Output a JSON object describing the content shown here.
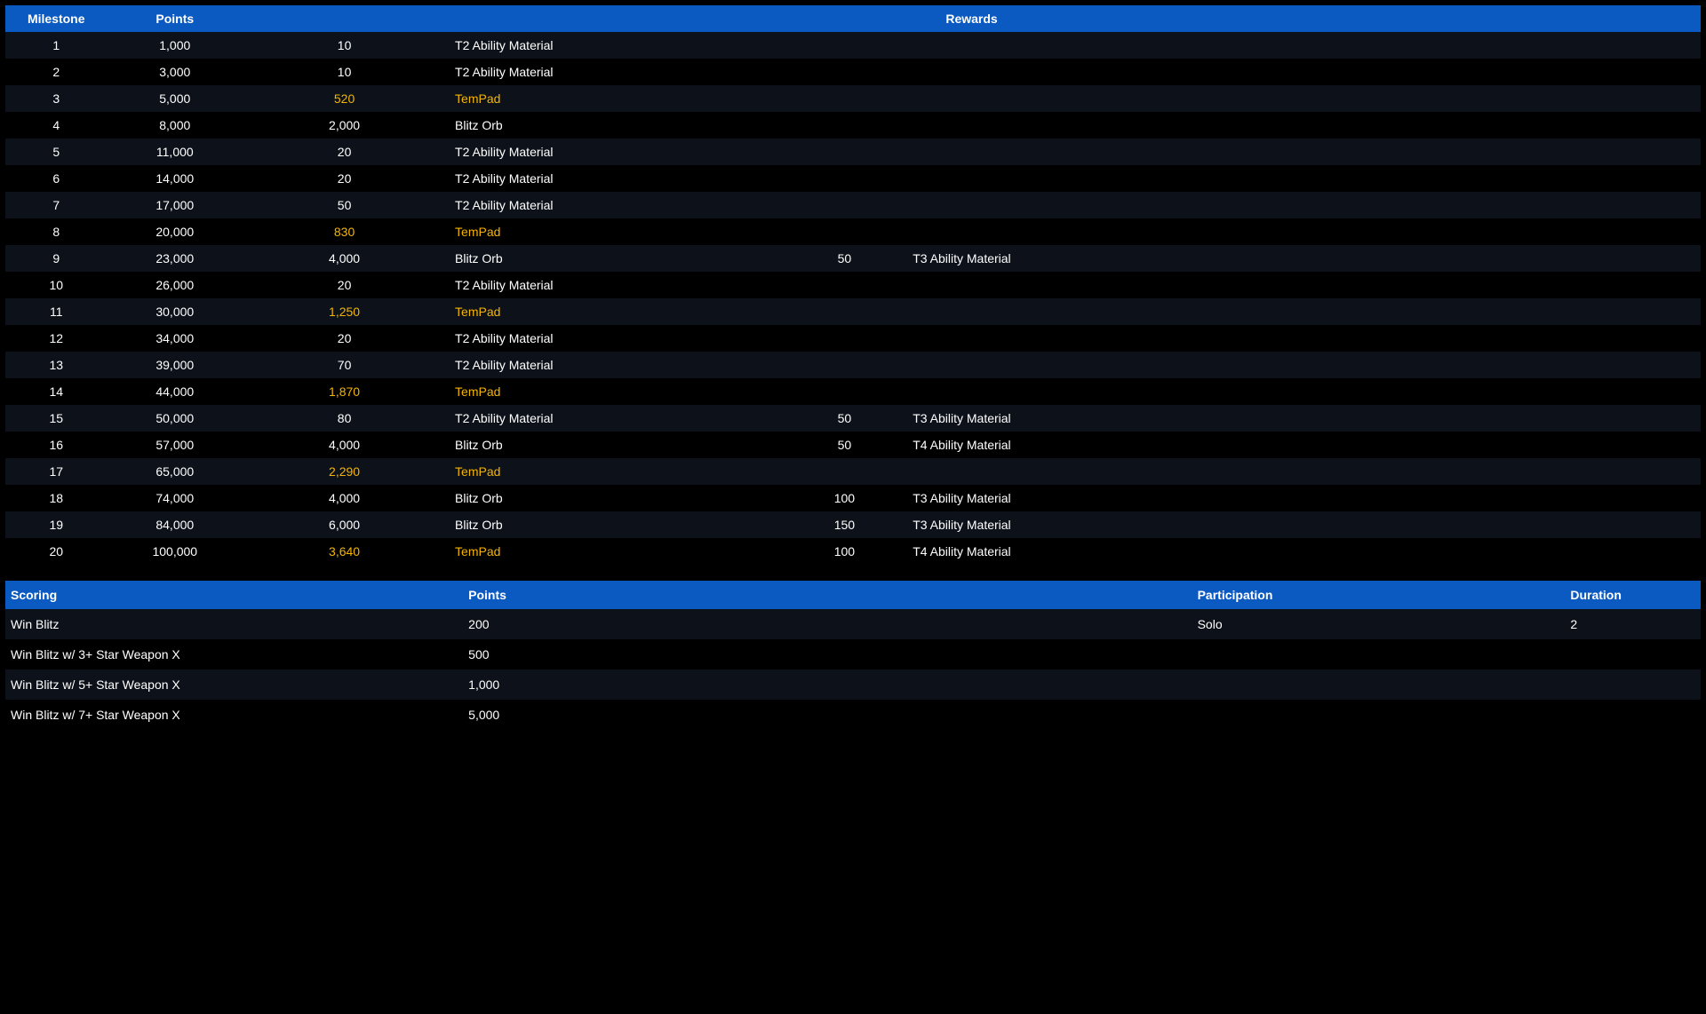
{
  "milestones_table": {
    "headers": {
      "milestone": "Milestone",
      "points": "Points",
      "rewards": "Rewards"
    },
    "highlight_color": "#f5b400",
    "header_bg": "#0a5ac2",
    "row_bg_odd": "#0d121a",
    "row_bg_even": "#000000",
    "rows": [
      {
        "milestone": "1",
        "points": "1,000",
        "reward1_qty": "10",
        "reward1_item": "T2 Ability Material",
        "reward2_qty": "",
        "reward2_item": "",
        "highlight": false
      },
      {
        "milestone": "2",
        "points": "3,000",
        "reward1_qty": "10",
        "reward1_item": "T2 Ability Material",
        "reward2_qty": "",
        "reward2_item": "",
        "highlight": false
      },
      {
        "milestone": "3",
        "points": "5,000",
        "reward1_qty": "520",
        "reward1_item": "TemPad",
        "reward2_qty": "",
        "reward2_item": "",
        "highlight": true
      },
      {
        "milestone": "4",
        "points": "8,000",
        "reward1_qty": "2,000",
        "reward1_item": "Blitz Orb",
        "reward2_qty": "",
        "reward2_item": "",
        "highlight": false
      },
      {
        "milestone": "5",
        "points": "11,000",
        "reward1_qty": "20",
        "reward1_item": "T2 Ability Material",
        "reward2_qty": "",
        "reward2_item": "",
        "highlight": false
      },
      {
        "milestone": "6",
        "points": "14,000",
        "reward1_qty": "20",
        "reward1_item": "T2 Ability Material",
        "reward2_qty": "",
        "reward2_item": "",
        "highlight": false
      },
      {
        "milestone": "7",
        "points": "17,000",
        "reward1_qty": "50",
        "reward1_item": "T2 Ability Material",
        "reward2_qty": "",
        "reward2_item": "",
        "highlight": false
      },
      {
        "milestone": "8",
        "points": "20,000",
        "reward1_qty": "830",
        "reward1_item": "TemPad",
        "reward2_qty": "",
        "reward2_item": "",
        "highlight": true
      },
      {
        "milestone": "9",
        "points": "23,000",
        "reward1_qty": "4,000",
        "reward1_item": "Blitz Orb",
        "reward2_qty": "50",
        "reward2_item": "T3 Ability Material",
        "highlight": false
      },
      {
        "milestone": "10",
        "points": "26,000",
        "reward1_qty": "20",
        "reward1_item": "T2 Ability Material",
        "reward2_qty": "",
        "reward2_item": "",
        "highlight": false
      },
      {
        "milestone": "11",
        "points": "30,000",
        "reward1_qty": "1,250",
        "reward1_item": "TemPad",
        "reward2_qty": "",
        "reward2_item": "",
        "highlight": true
      },
      {
        "milestone": "12",
        "points": "34,000",
        "reward1_qty": "20",
        "reward1_item": "T2 Ability Material",
        "reward2_qty": "",
        "reward2_item": "",
        "highlight": false
      },
      {
        "milestone": "13",
        "points": "39,000",
        "reward1_qty": "70",
        "reward1_item": "T2 Ability Material",
        "reward2_qty": "",
        "reward2_item": "",
        "highlight": false
      },
      {
        "milestone": "14",
        "points": "44,000",
        "reward1_qty": "1,870",
        "reward1_item": "TemPad",
        "reward2_qty": "",
        "reward2_item": "",
        "highlight": true
      },
      {
        "milestone": "15",
        "points": "50,000",
        "reward1_qty": "80",
        "reward1_item": "T2 Ability Material",
        "reward2_qty": "50",
        "reward2_item": "T3 Ability Material",
        "highlight": false
      },
      {
        "milestone": "16",
        "points": "57,000",
        "reward1_qty": "4,000",
        "reward1_item": "Blitz Orb",
        "reward2_qty": "50",
        "reward2_item": "T4 Ability Material",
        "highlight": false
      },
      {
        "milestone": "17",
        "points": "65,000",
        "reward1_qty": "2,290",
        "reward1_item": "TemPad",
        "reward2_qty": "",
        "reward2_item": "",
        "highlight": true
      },
      {
        "milestone": "18",
        "points": "74,000",
        "reward1_qty": "4,000",
        "reward1_item": "Blitz Orb",
        "reward2_qty": "100",
        "reward2_item": "T3 Ability Material",
        "highlight": false
      },
      {
        "milestone": "19",
        "points": "84,000",
        "reward1_qty": "6,000",
        "reward1_item": "Blitz Orb",
        "reward2_qty": "150",
        "reward2_item": "T3 Ability Material",
        "highlight": false
      },
      {
        "milestone": "20",
        "points": "100,000",
        "reward1_qty": "3,640",
        "reward1_item": "TemPad",
        "reward2_qty": "100",
        "reward2_item": "T4 Ability Material",
        "highlight": true
      }
    ]
  },
  "scoring_table": {
    "headers": {
      "scoring": "Scoring",
      "points": "Points",
      "participation": "Participation",
      "duration": "Duration"
    },
    "rows": [
      {
        "scoring": "Win Blitz",
        "points": "200",
        "participation": "Solo",
        "duration": "2"
      },
      {
        "scoring": "Win Blitz w/ 3+ Star Weapon X",
        "points": "500",
        "participation": "",
        "duration": ""
      },
      {
        "scoring": "Win Blitz w/ 5+ Star Weapon X",
        "points": "1,000",
        "participation": "",
        "duration": ""
      },
      {
        "scoring": "Win Blitz w/ 7+ Star Weapon X",
        "points": "5,000",
        "participation": "",
        "duration": ""
      }
    ]
  }
}
